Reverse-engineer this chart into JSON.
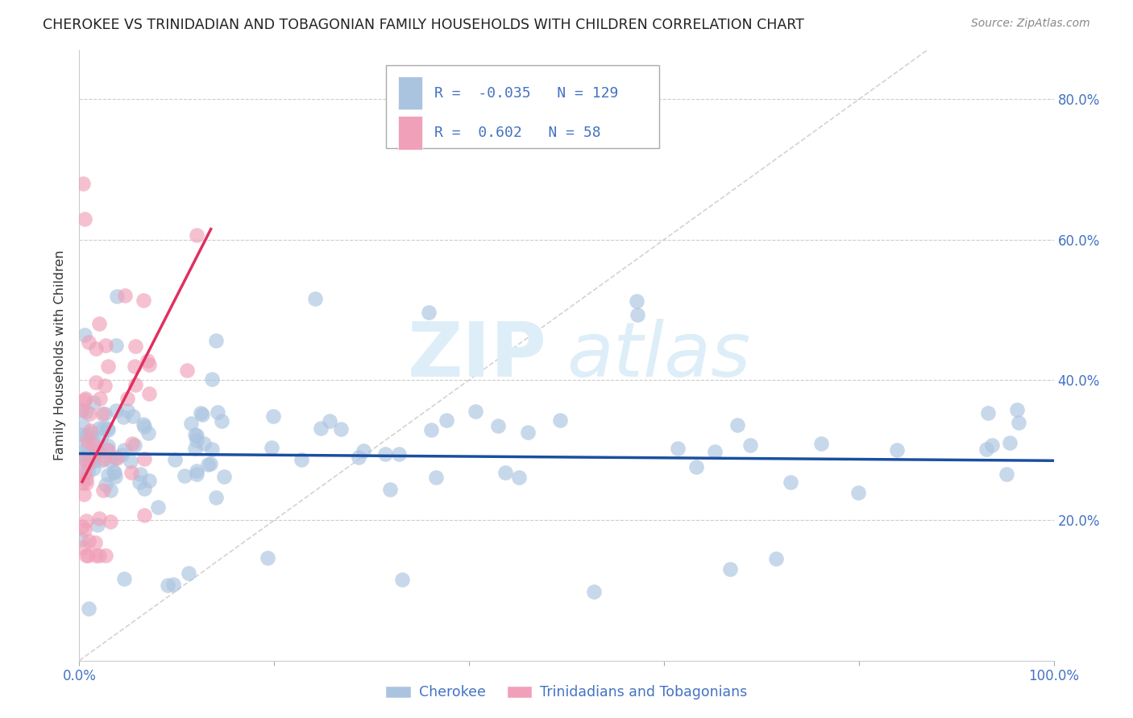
{
  "title": "CHEROKEE VS TRINIDADIAN AND TOBAGONIAN FAMILY HOUSEHOLDS WITH CHILDREN CORRELATION CHART",
  "source": "Source: ZipAtlas.com",
  "ylabel": "Family Households with Children",
  "cherokee_R": -0.035,
  "cherokee_N": 129,
  "trinidadian_R": 0.602,
  "trinidadian_N": 58,
  "cherokee_color": "#aac4e0",
  "trinidadian_color": "#f0a0b8",
  "cherokee_line_color": "#1a4fa0",
  "trinidadian_line_color": "#e03060",
  "trendline_ref_color": "#c8c8c8",
  "background_color": "#ffffff",
  "grid_color": "#cccccc",
  "title_color": "#333333",
  "tick_color": "#4472c4",
  "watermark_color": "#ddeef8",
  "legend_edge_color": "#aaaaaa"
}
